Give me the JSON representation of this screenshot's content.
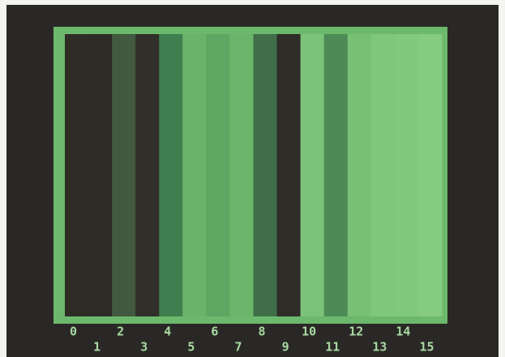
{
  "screen": {
    "bars": [
      {
        "label": "0",
        "color": "#2f2b25"
      },
      {
        "label": "1",
        "color": "#2c2b25"
      },
      {
        "label": "2",
        "color": "#41593f"
      },
      {
        "label": "3",
        "color": "#302f29"
      },
      {
        "label": "4",
        "color": "#3f7e4e"
      },
      {
        "label": "5",
        "color": "#69b46a"
      },
      {
        "label": "6",
        "color": "#5ea762"
      },
      {
        "label": "7",
        "color": "#6bb66b"
      },
      {
        "label": "8",
        "color": "#406e48"
      },
      {
        "label": "9",
        "color": "#2e2d28"
      },
      {
        "label": "10",
        "color": "#7bc379"
      },
      {
        "label": "11",
        "color": "#4c8b56"
      },
      {
        "label": "12",
        "color": "#77c074"
      },
      {
        "label": "13",
        "color": "#7ec77b"
      },
      {
        "label": "14",
        "color": "#81c97d"
      },
      {
        "label": "15",
        "color": "#85cc80"
      }
    ]
  }
}
